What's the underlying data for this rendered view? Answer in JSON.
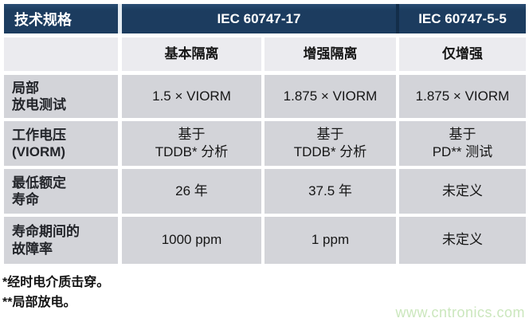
{
  "table": {
    "title_cell": "技术规格",
    "standards": {
      "group": "IEC 60747-17",
      "single": "IEC 60747-5-5"
    },
    "subheaders": [
      "基本隔离",
      "增强隔离",
      "仅增强"
    ],
    "rows": [
      {
        "label": "局部\n放电测试",
        "values": [
          "1.5 × VIORM",
          "1.875 × VIORM",
          "1.875 × VIORM"
        ]
      },
      {
        "label": "工作电压\n(VIORM)",
        "values": [
          "基于\nTDDB* 分析",
          "基于\nTDDB* 分析",
          "基于\nPD** 测试"
        ]
      },
      {
        "label": "最低额定\n寿命",
        "values": [
          "26 年",
          "37.5 年",
          "未定义"
        ]
      },
      {
        "label": "寿命期间的\n故障率",
        "values": [
          "1000 ppm",
          "1 ppm",
          "未定义"
        ]
      }
    ]
  },
  "footnotes": [
    "*经时电介质击穿。",
    "**局部放电。"
  ],
  "watermark": "www.cntronics.com",
  "colors": {
    "header_bg": "#1c3c5f",
    "header_divider_dark": "#132e4a",
    "header_divider_light": "#e4ecf3",
    "subheader_bg": "#ebebef",
    "data_row_bg": "#d3d4d9",
    "footnote_text": "#131313",
    "watermark_green": "#cbe7bd"
  }
}
